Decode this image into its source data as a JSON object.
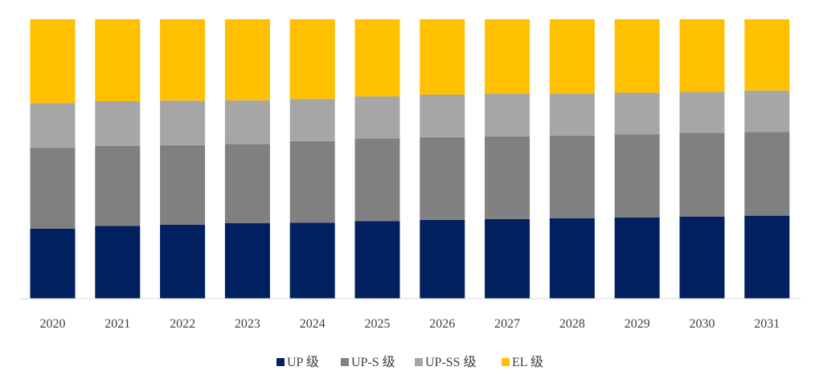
{
  "chart_data": {
    "type": "bar",
    "stacked": true,
    "normalized": true,
    "title": "",
    "xlabel": "",
    "ylabel": "",
    "ylim": [
      0,
      100
    ],
    "grid": false,
    "legend_position": "bottom-center",
    "categories": [
      "2020",
      "2021",
      "2022",
      "2023",
      "2024",
      "2025",
      "2026",
      "2027",
      "2028",
      "2029",
      "2030",
      "2031"
    ],
    "series": [
      {
        "name": "UP 级",
        "color": "#002060",
        "values": [
          25,
          26,
          26.5,
          27,
          27.2,
          27.8,
          28.2,
          28.5,
          28.8,
          29.1,
          29.4,
          29.7
        ]
      },
      {
        "name": "UP-S 级",
        "color": "#808080",
        "values": [
          29,
          28.7,
          28.4,
          28.4,
          29.2,
          29.6,
          29.6,
          29.6,
          29.6,
          29.7,
          30,
          30
        ]
      },
      {
        "name": "UP-SS 级",
        "color": "#A6A6A6",
        "values": [
          16,
          16,
          16,
          15.6,
          15.1,
          15,
          15.2,
          15.2,
          15,
          14.9,
          14.6,
          14.8
        ]
      },
      {
        "name": "EL 级",
        "color": "#FFC000",
        "values": [
          30,
          29.3,
          29.1,
          29,
          28.5,
          27.6,
          27,
          26.7,
          26.6,
          26.3,
          26,
          25.5
        ]
      }
    ]
  }
}
